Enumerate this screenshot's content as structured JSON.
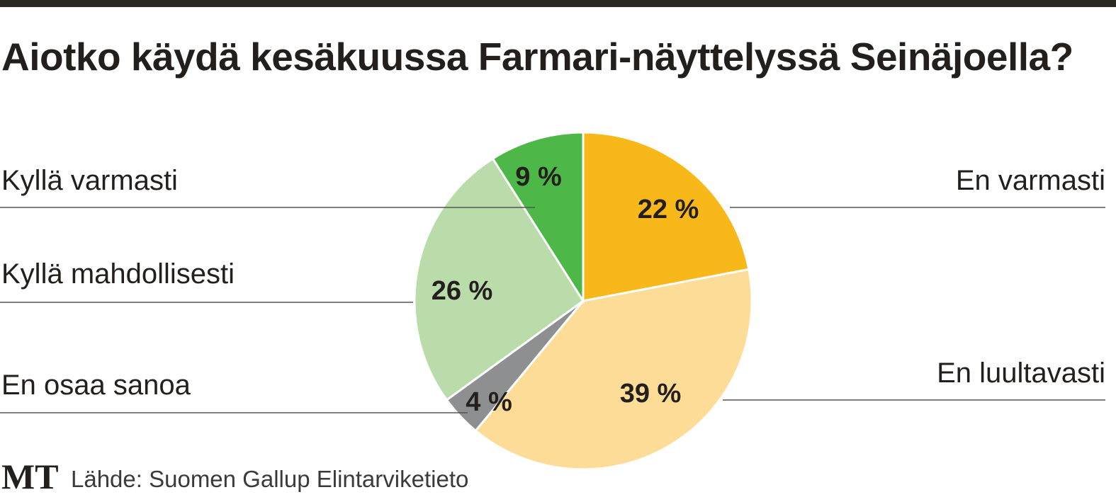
{
  "chart_data": {
    "type": "pie",
    "title": "Aiotko käydä kesäkuussa Farmari-näyttelyssä Seinäjoella?",
    "categories": [
      "En varmasti",
      "En luultavasti",
      "En osaa sanoa",
      "Kyllä mahdollisesti",
      "Kyllä varmasti"
    ],
    "values": [
      22,
      39,
      4,
      26,
      9
    ],
    "value_labels": [
      "22 %",
      "39 %",
      "4 %",
      "26 %",
      "9 %"
    ],
    "colors": [
      "#f9b81a",
      "#fddc98",
      "#8e8f91",
      "#b9dcaa",
      "#4db848"
    ],
    "source": "Lähde: Suomen Gallup Elintarviketieto",
    "logo": "MT"
  }
}
